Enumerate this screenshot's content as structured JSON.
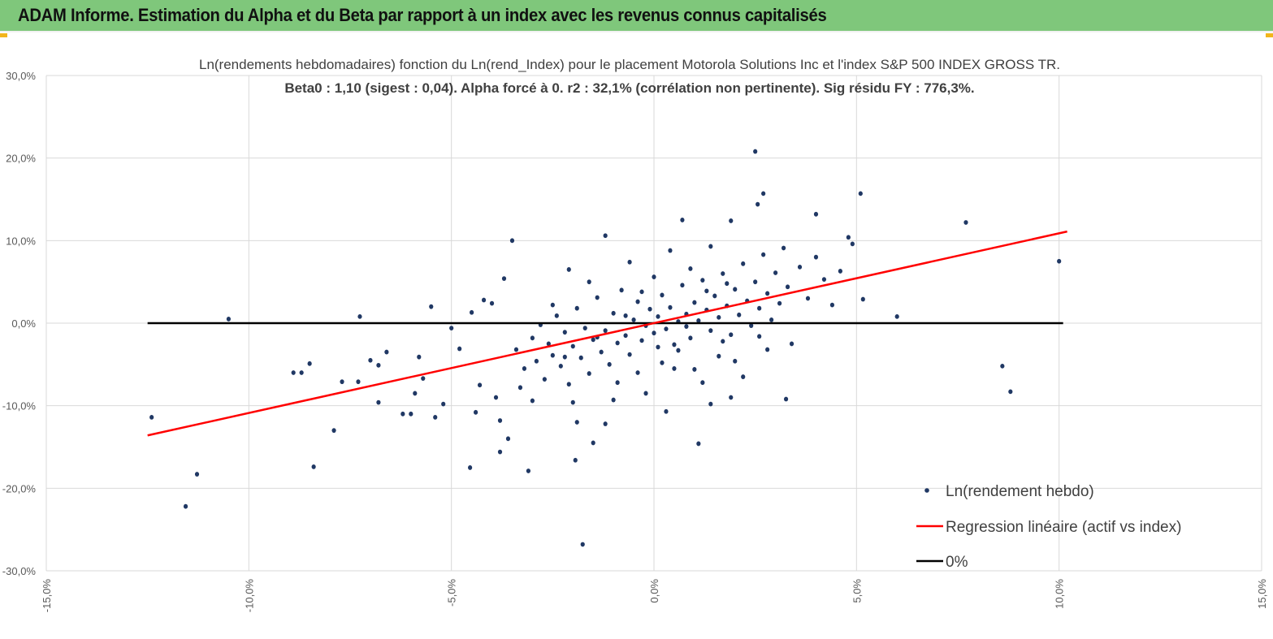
{
  "header": {
    "title": "ADAM Informe. Estimation du Alpha et du Beta par rapport à un index avec les revenus connus capitalisés"
  },
  "colors": {
    "header_bg": "#7fc77b",
    "points": "#203864",
    "regression": "#ff0000",
    "zero_line": "#000000",
    "grid": "#d9d9d9"
  },
  "chart_data": {
    "type": "scatter",
    "title": [
      "Ln(rendements hebdomadaires) fonction du Ln(rend_Index) pour le placement Motorola Solutions Inc et l'index S&P 500 INDEX GROSS TR.",
      "Beta0 : 1,10 (sigest : 0,04). Alpha forcé à 0. r2 : 32,1% (corrélation non pertinente). Sig résidu FY : 776,3%."
    ],
    "xlim": [
      -15,
      15
    ],
    "ylim": [
      -30,
      30
    ],
    "x_ticks": [
      -15,
      -10,
      -5,
      0,
      5,
      10,
      15
    ],
    "x_tick_labels": [
      "-15,0%",
      "-10,0%",
      "-5,0%",
      "0,0%",
      "5,0%",
      "10,0%",
      "15,0%"
    ],
    "y_ticks": [
      30,
      20,
      10,
      0,
      -10,
      -20,
      -30
    ],
    "y_tick_labels": [
      "30,0%",
      "20,0%",
      "10,0%",
      "0,0%",
      "-10,0%",
      "-20,0%",
      "-30,0%"
    ],
    "grid": true,
    "legend_position": "bottom-right",
    "legend": [
      "Ln(rendement hebdo)",
      "Regression linéaire (actif vs index)",
      "0%"
    ],
    "regression": {
      "x": [
        -12.5,
        10.2
      ],
      "y": [
        -13.6,
        11.1
      ]
    },
    "zero_line": {
      "x": [
        -12.5,
        10.1
      ],
      "y": [
        0,
        0
      ]
    },
    "points": [
      [
        -12.4,
        -11.4
      ],
      [
        -11.56,
        -22.2
      ],
      [
        -11.28,
        -18.3
      ],
      [
        -10.5,
        0.5
      ],
      [
        -8.9,
        -6.0
      ],
      [
        -8.7,
        -6.0
      ],
      [
        -8.5,
        -4.9
      ],
      [
        -8.4,
        -17.4
      ],
      [
        -7.9,
        -13.0
      ],
      [
        -7.7,
        -7.1
      ],
      [
        -7.3,
        -7.1
      ],
      [
        -7.26,
        0.8
      ],
      [
        -7.0,
        -4.5
      ],
      [
        -6.8,
        -9.6
      ],
      [
        -6.8,
        -5.1
      ],
      [
        -6.6,
        -3.5
      ],
      [
        -6.2,
        -11.0
      ],
      [
        -6.0,
        -11.0
      ],
      [
        -5.9,
        -8.5
      ],
      [
        -5.8,
        -4.1
      ],
      [
        -5.7,
        -6.7
      ],
      [
        -5.5,
        2.0
      ],
      [
        -5.4,
        -11.4
      ],
      [
        -5.2,
        -9.8
      ],
      [
        -5.0,
        -0.6
      ],
      [
        -4.8,
        -3.1
      ],
      [
        -4.54,
        -17.5
      ],
      [
        -4.5,
        1.3
      ],
      [
        -4.4,
        -10.8
      ],
      [
        -4.3,
        -7.5
      ],
      [
        -4.2,
        2.8
      ],
      [
        -4.0,
        2.4
      ],
      [
        -3.9,
        -9.0
      ],
      [
        -3.8,
        -15.6
      ],
      [
        -3.8,
        -11.8
      ],
      [
        -3.7,
        5.4
      ],
      [
        -3.6,
        -14.0
      ],
      [
        -3.5,
        10.0
      ],
      [
        -3.1,
        -17.9
      ],
      [
        -3.0,
        -9.4
      ],
      [
        -2.2,
        -4.1
      ],
      [
        -2.0,
        -9.6
      ],
      [
        -1.94,
        -16.6
      ],
      [
        -1.9,
        -12.0
      ],
      [
        -2.1,
        6.5
      ],
      [
        -1.76,
        -26.8
      ],
      [
        -1.5,
        -14.5
      ],
      [
        -1.2,
        10.6
      ],
      [
        -1.2,
        -12.2
      ],
      [
        0.3,
        -10.7
      ],
      [
        0.7,
        12.5
      ],
      [
        1.1,
        -14.6
      ],
      [
        1.4,
        -9.8
      ],
      [
        1.9,
        12.4
      ],
      [
        1.9,
        -9.0
      ],
      [
        2.5,
        20.8
      ],
      [
        2.56,
        14.4
      ],
      [
        2.7,
        15.7
      ],
      [
        3.26,
        -9.2
      ],
      [
        4.0,
        13.2
      ],
      [
        4.8,
        10.4
      ],
      [
        5.1,
        15.7
      ],
      [
        5.16,
        2.9
      ],
      [
        6.0,
        0.8
      ],
      [
        7.7,
        12.2
      ],
      [
        8.6,
        -5.2
      ],
      [
        8.8,
        -8.3
      ],
      [
        10.0,
        7.5
      ],
      [
        -3.4,
        -3.2
      ],
      [
        -3.2,
        -5.5
      ],
      [
        -3.0,
        -1.8
      ],
      [
        -2.9,
        -4.6
      ],
      [
        -2.8,
        -0.2
      ],
      [
        -2.7,
        -6.8
      ],
      [
        -2.6,
        -2.5
      ],
      [
        -2.5,
        -3.9
      ],
      [
        -2.4,
        0.9
      ],
      [
        -2.3,
        -5.2
      ],
      [
        -2.2,
        -1.1
      ],
      [
        -2.1,
        -7.4
      ],
      [
        -2.0,
        -2.8
      ],
      [
        -1.9,
        1.8
      ],
      [
        -1.8,
        -4.2
      ],
      [
        -1.7,
        -0.6
      ],
      [
        -1.6,
        -6.1
      ],
      [
        -1.5,
        -2.0
      ],
      [
        -1.4,
        3.1
      ],
      [
        -1.3,
        -3.5
      ],
      [
        -1.2,
        -0.9
      ],
      [
        -1.1,
        -5.0
      ],
      [
        -1.0,
        1.2
      ],
      [
        -0.9,
        -2.4
      ],
      [
        -0.8,
        4.0
      ],
      [
        -0.7,
        -1.5
      ],
      [
        -0.6,
        -3.8
      ],
      [
        -0.5,
        0.4
      ],
      [
        -0.4,
        2.6
      ],
      [
        -0.3,
        -2.1
      ],
      [
        -0.2,
        -0.3
      ],
      [
        -0.1,
        1.7
      ],
      [
        0.0,
        -1.2
      ],
      [
        0.1,
        0.8
      ],
      [
        0.2,
        3.4
      ],
      [
        0.3,
        -0.7
      ],
      [
        0.4,
        1.9
      ],
      [
        0.5,
        -2.6
      ],
      [
        0.6,
        0.2
      ],
      [
        0.7,
        4.6
      ],
      [
        0.8,
        1.1
      ],
      [
        0.9,
        -1.8
      ],
      [
        1.0,
        2.5
      ],
      [
        1.1,
        0.3
      ],
      [
        1.2,
        5.2
      ],
      [
        1.3,
        1.6
      ],
      [
        1.4,
        -0.9
      ],
      [
        1.5,
        3.3
      ],
      [
        1.6,
        0.7
      ],
      [
        1.7,
        6.0
      ],
      [
        1.8,
        2.1
      ],
      [
        1.9,
        -1.4
      ],
      [
        2.0,
        4.1
      ],
      [
        2.1,
        1.0
      ],
      [
        2.2,
        7.2
      ],
      [
        2.3,
        2.7
      ],
      [
        2.4,
        -0.3
      ],
      [
        2.5,
        5.0
      ],
      [
        2.6,
        1.8
      ],
      [
        2.7,
        8.3
      ],
      [
        2.8,
        3.6
      ],
      [
        2.9,
        0.4
      ],
      [
        3.0,
        6.1
      ],
      [
        3.1,
        2.4
      ],
      [
        3.2,
        9.1
      ],
      [
        3.3,
        4.4
      ],
      [
        3.4,
        -2.5
      ],
      [
        3.6,
        6.8
      ],
      [
        3.8,
        3.0
      ],
      [
        4.0,
        8.0
      ],
      [
        4.2,
        5.3
      ],
      [
        4.4,
        2.2
      ],
      [
        4.6,
        6.3
      ],
      [
        4.9,
        9.6
      ],
      [
        -0.9,
        -7.2
      ],
      [
        -0.4,
        -6.0
      ],
      [
        0.2,
        -4.8
      ],
      [
        0.6,
        -3.3
      ],
      [
        1.0,
        -5.6
      ],
      [
        1.6,
        -4.0
      ],
      [
        2.2,
        -6.5
      ],
      [
        2.8,
        -3.2
      ],
      [
        -1.6,
        5.0
      ],
      [
        -0.6,
        7.4
      ],
      [
        0.4,
        8.8
      ],
      [
        1.4,
        9.3
      ],
      [
        -0.2,
        -8.5
      ],
      [
        0.9,
        6.6
      ],
      [
        1.7,
        -2.2
      ],
      [
        -2.5,
        2.2
      ],
      [
        -3.3,
        -7.8
      ],
      [
        -1.0,
        -9.3
      ],
      [
        0.0,
        5.6
      ],
      [
        0.5,
        -5.5
      ],
      [
        1.2,
        -7.2
      ],
      [
        2.0,
        -4.6
      ],
      [
        -0.3,
        3.8
      ],
      [
        0.8,
        -0.4
      ],
      [
        1.3,
        3.9
      ],
      [
        -0.7,
        0.9
      ],
      [
        -1.4,
        -1.7
      ],
      [
        0.1,
        -2.9
      ],
      [
        1.8,
        4.8
      ],
      [
        2.6,
        -1.6
      ]
    ]
  }
}
